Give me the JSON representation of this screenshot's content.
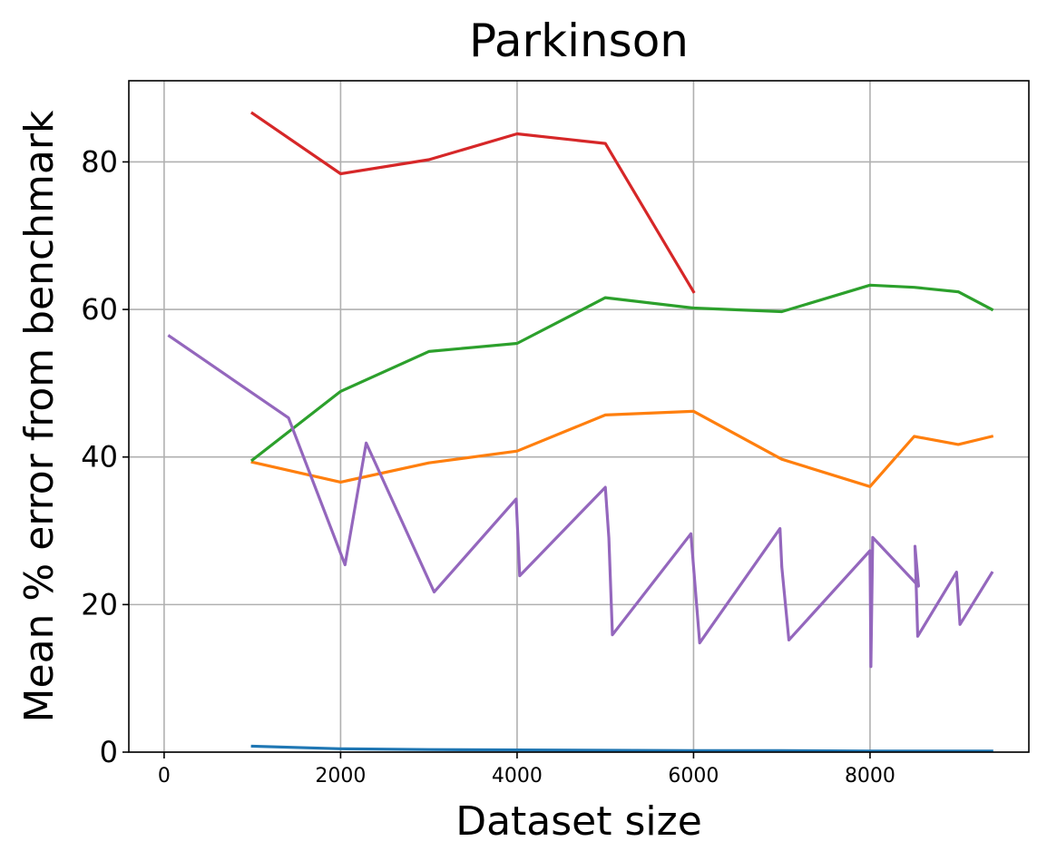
{
  "chart_data": {
    "type": "line",
    "title": "Parkinson",
    "xlabel": "Dataset size",
    "ylabel": "Mean % error from benchmark",
    "xlim": [
      -400,
      9800
    ],
    "ylim": [
      0,
      91
    ],
    "xticks": [
      0,
      2000,
      4000,
      6000,
      8000
    ],
    "xtick_labels": [
      "0",
      "2000",
      "4000",
      "6000",
      "8000"
    ],
    "yticks": [
      0,
      20,
      40,
      60,
      80
    ],
    "ytick_labels": [
      "0",
      "20",
      "40",
      "60",
      "80"
    ],
    "grid": true,
    "legend": "none",
    "series": [
      {
        "color": "#1f77b4",
        "x": [
          1000,
          2000,
          3000,
          4000,
          5000,
          6000,
          7000,
          8000,
          9000,
          9380
        ],
        "y": [
          0.8,
          0.45,
          0.35,
          0.3,
          0.25,
          0.2,
          0.2,
          0.15,
          0.15,
          0.15
        ]
      },
      {
        "color": "#ff7f0e",
        "x": [
          1000,
          2000,
          3000,
          4000,
          5000,
          6000,
          7000,
          8000,
          8500,
          9000,
          9380
        ],
        "y": [
          39.3,
          36.6,
          39.2,
          40.8,
          45.7,
          46.2,
          39.7,
          36.0,
          42.8,
          41.7,
          42.8
        ]
      },
      {
        "color": "#2ca02c",
        "x": [
          1000,
          2000,
          3000,
          4000,
          5000,
          6000,
          7000,
          8000,
          8500,
          9000,
          9380
        ],
        "y": [
          39.6,
          48.9,
          54.3,
          55.4,
          61.6,
          60.2,
          59.7,
          63.3,
          63.0,
          62.4,
          60.0
        ]
      },
      {
        "color": "#d62728",
        "x": [
          1000,
          2000,
          3000,
          4000,
          5000,
          6000
        ],
        "y": [
          86.6,
          78.4,
          80.3,
          83.8,
          82.5,
          62.4
        ]
      },
      {
        "color": "#9467bd",
        "x": [
          60,
          1410,
          2050,
          2290,
          3060,
          3990,
          4030,
          5000,
          5040,
          5080,
          5970,
          6070,
          6980,
          7000,
          7080,
          8000,
          8010,
          8030,
          8550,
          8510,
          8540,
          8980,
          9020,
          9380
        ],
        "y": [
          56.4,
          45.3,
          25.4,
          41.9,
          21.7,
          34.3,
          23.9,
          35.9,
          29.0,
          15.9,
          29.6,
          14.8,
          30.3,
          25.1,
          15.2,
          27.3,
          11.6,
          29.1,
          22.5,
          27.9,
          15.7,
          24.4,
          17.3,
          24.3
        ]
      }
    ]
  }
}
